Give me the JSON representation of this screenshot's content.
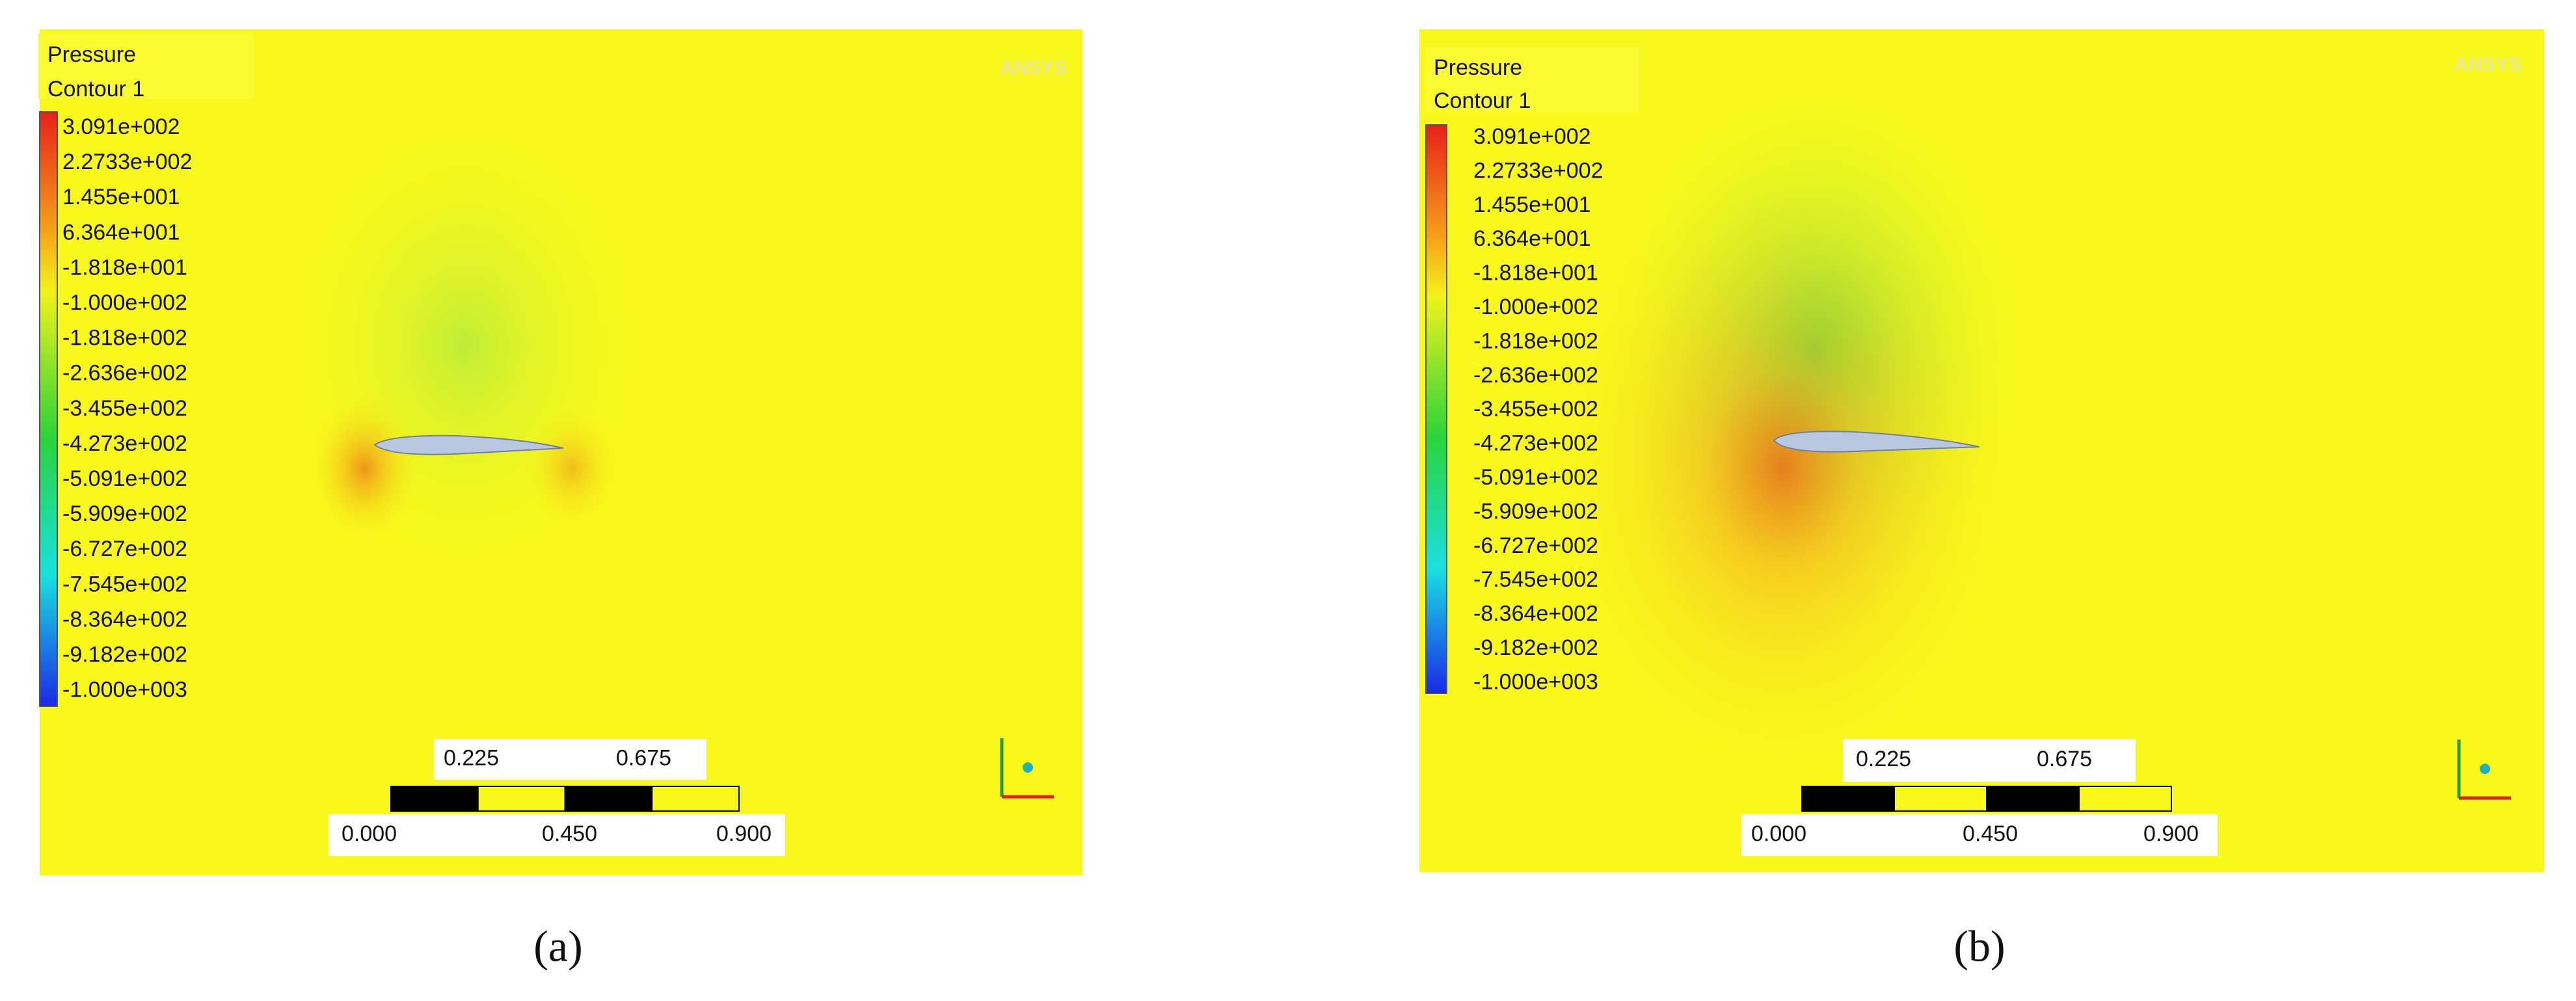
{
  "panels": [
    {
      "legend_title": [
        "Pressure",
        "Contour 1"
      ],
      "legend_labels": [
        "3.091e+002",
        "2.2733e+002",
        "1.455e+001",
        "6.364e+001",
        "-1.818e+001",
        "-1.000e+002",
        "-1.818e+002",
        "-2.636e+002",
        "-3.455e+002",
        "-4.273e+002",
        "-5.091e+002",
        "-5.909e+002",
        "-6.727e+002",
        "-7.545e+002",
        "-8.364e+002",
        "-9.182e+002",
        "-1.000e+003"
      ],
      "scale_top": [
        "0.225",
        "0.675"
      ],
      "scale_bottom": [
        "0.000",
        "0.450",
        "0.900"
      ],
      "watermark": "ANSYS",
      "caption": "(a)"
    },
    {
      "legend_title": [
        "Pressure",
        "Contour 1"
      ],
      "legend_labels": [
        "3.091e+002",
        "2.2733e+002",
        "1.455e+001",
        "6.364e+001",
        "-1.818e+001",
        "-1.000e+002",
        "-1.818e+002",
        "-2.636e+002",
        "-3.455e+002",
        "-4.273e+002",
        "-5.091e+002",
        "-5.909e+002",
        "-6.727e+002",
        "-7.545e+002",
        "-8.364e+002",
        "-9.182e+002",
        "-1.000e+003"
      ],
      "scale_top": [
        "0.225",
        "0.675"
      ],
      "scale_bottom": [
        "0.000",
        "0.450",
        "0.900"
      ],
      "watermark": "ANSYS",
      "caption": "(b)"
    }
  ]
}
